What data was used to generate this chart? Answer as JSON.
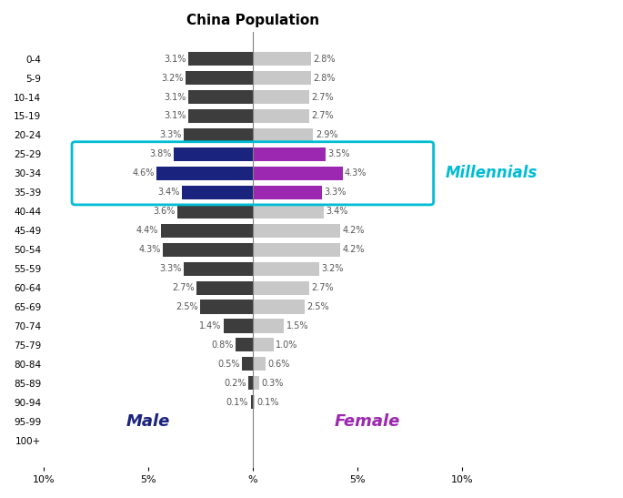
{
  "title": "China Population",
  "age_groups": [
    "100+",
    "95-99",
    "90-94",
    "85-89",
    "80-84",
    "75-79",
    "70-74",
    "65-69",
    "60-64",
    "55-59",
    "50-54",
    "45-49",
    "40-44",
    "35-39",
    "30-34",
    "25-29",
    "20-24",
    "15-19",
    "10-14",
    "5-9",
    "0-4"
  ],
  "male": [
    0.0,
    0.0,
    0.1,
    0.2,
    0.5,
    0.8,
    1.4,
    2.5,
    2.7,
    3.3,
    4.3,
    4.4,
    3.6,
    3.4,
    4.6,
    3.8,
    3.3,
    3.1,
    3.1,
    3.2,
    3.1
  ],
  "female": [
    0.0,
    0.0,
    0.1,
    0.3,
    0.6,
    1.0,
    1.5,
    2.5,
    2.7,
    3.2,
    4.2,
    4.2,
    3.4,
    3.3,
    4.3,
    3.5,
    2.9,
    2.7,
    2.7,
    2.8,
    2.8
  ],
  "male_labels": [
    "",
    "",
    "0.1%",
    "0.2%",
    "0.5%",
    "0.8%",
    "1.4%",
    "2.5%",
    "2.7%",
    "3.3%",
    "4.3%",
    "4.4%",
    "3.6%",
    "3.4%",
    "4.6%",
    "3.8%",
    "3.3%",
    "3.1%",
    "3.1%",
    "3.2%",
    "3.1%"
  ],
  "female_labels": [
    "",
    "",
    "0.1%",
    "0.3%",
    "0.6%",
    "1.0%",
    "1.5%",
    "2.5%",
    "2.7%",
    "3.2%",
    "4.2%",
    "4.2%",
    "3.4%",
    "3.3%",
    "4.3%",
    "3.5%",
    "2.9%",
    "2.7%",
    "2.7%",
    "2.8%",
    "2.8%"
  ],
  "millennial_indices": [
    13,
    14,
    15
  ],
  "male_color_normal": "#3d3d3d",
  "female_color_normal": "#c8c8c8",
  "male_color_millennial": "#1a237e",
  "female_color_millennial": "#9c27b0",
  "male_text_color": "#1a237e",
  "female_text_color": "#9c27b0",
  "millennial_box_color": "#00bcd4",
  "xlim": 10
}
